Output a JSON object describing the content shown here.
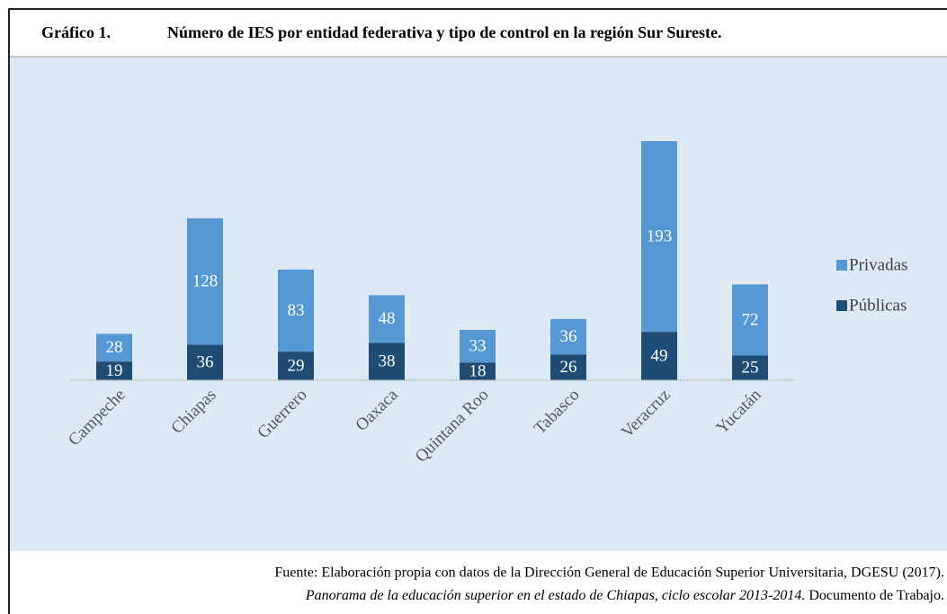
{
  "chart_data": {
    "type": "stacked_bar",
    "figure_label": "Gráfico 1.",
    "title": "Número de IES por entidad federativa y tipo de control en la región Sur Sureste.",
    "categories": [
      "Campeche",
      "Chiapas",
      "Guerrero",
      "Oaxaca",
      "Quintana Roo",
      "Tabasco",
      "Veracruz",
      "Yucatán"
    ],
    "series": [
      {
        "name": "Privadas",
        "color": "#5598d3",
        "values": [
          28,
          128,
          83,
          48,
          33,
          36,
          193,
          72
        ]
      },
      {
        "name": "Públicas",
        "color": "#1f4c75",
        "values": [
          19,
          36,
          29,
          38,
          18,
          26,
          49,
          25
        ]
      }
    ],
    "legend": "right",
    "source_line1": "Fuente: Elaboración propia con datos de la Dirección General de Educación Superior Universitaria, DGESU (2017).",
    "source_line2_italic": "Panorama de la educación superior en el estado de Chiapas, ciclo escolar 2013-2014.",
    "source_line2_rest": " Documento de Trabajo."
  }
}
